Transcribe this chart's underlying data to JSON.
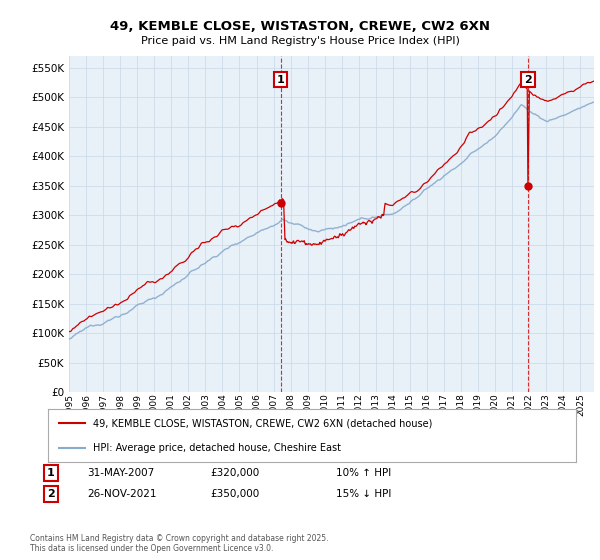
{
  "title": "49, KEMBLE CLOSE, WISTASTON, CREWE, CW2 6XN",
  "subtitle": "Price paid vs. HM Land Registry's House Price Index (HPI)",
  "ytick_values": [
    0,
    50000,
    100000,
    150000,
    200000,
    250000,
    300000,
    350000,
    400000,
    450000,
    500000,
    550000
  ],
  "ylim": [
    0,
    570000
  ],
  "xlim_start": 1995.0,
  "xlim_end": 2025.8,
  "sale1_year": 2007.42,
  "sale1_price": 320000,
  "sale1_date": "31-MAY-2007",
  "sale1_pct": "10% ↑ HPI",
  "sale2_year": 2021.92,
  "sale2_price": 350000,
  "sale2_date": "26-NOV-2021",
  "sale2_pct": "15% ↓ HPI",
  "legend_label_red": "49, KEMBLE CLOSE, WISTASTON, CREWE, CW2 6XN (detached house)",
  "legend_label_blue": "HPI: Average price, detached house, Cheshire East",
  "footnote": "Contains HM Land Registry data © Crown copyright and database right 2025.\nThis data is licensed under the Open Government Licence v3.0.",
  "red_color": "#cc0000",
  "blue_color": "#88aacc",
  "chart_bg_color": "#e8f0f8",
  "background_color": "#ffffff",
  "grid_color": "#c8d8e8",
  "annotation_box_color": "#cc0000"
}
